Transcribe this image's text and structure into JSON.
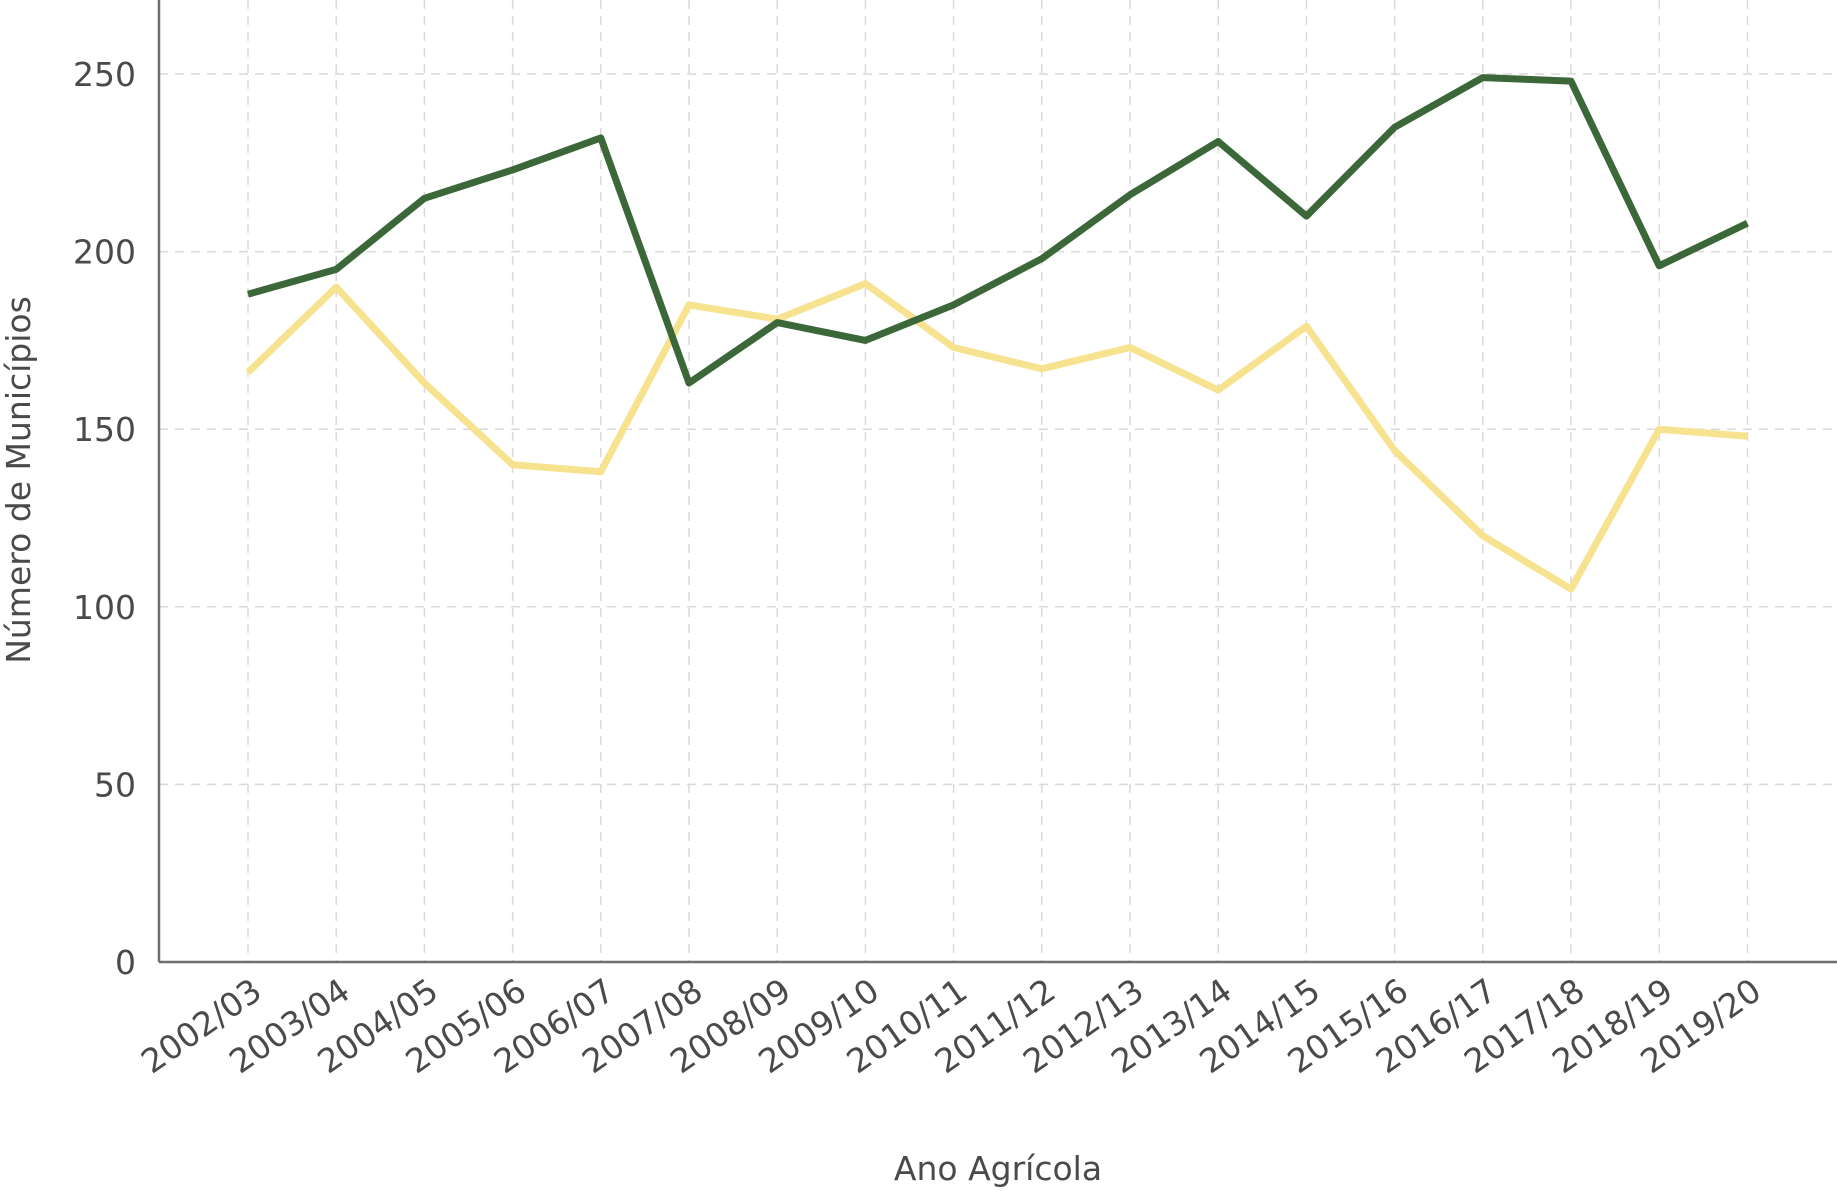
{
  "chart_data": {
    "type": "line",
    "title": "",
    "xlabel": "Ano Agrícola",
    "ylabel": "Número de Municípios",
    "ylim": [
      0,
      270
    ],
    "yticks": [
      0,
      50,
      100,
      150,
      200,
      250
    ],
    "grid": true,
    "legend": "none",
    "categories": [
      "2002/03",
      "2003/04",
      "2004/05",
      "2005/06",
      "2006/07",
      "2007/08",
      "2008/09",
      "2009/10",
      "2010/11",
      "2011/12",
      "2012/13",
      "2013/14",
      "2014/15",
      "2015/16",
      "2016/17",
      "2017/18",
      "2018/19",
      "2019/20"
    ],
    "series": [
      {
        "color": "#3c6739",
        "values": [
          188,
          195,
          215,
          223,
          232,
          163,
          180,
          175,
          185,
          198,
          216,
          231,
          210,
          235,
          249,
          248,
          196,
          208
        ]
      },
      {
        "color": "#f7e28f",
        "values": [
          166,
          190,
          163,
          140,
          138,
          185,
          181,
          191,
          173,
          167,
          173,
          161,
          179,
          144,
          120,
          105,
          150,
          148
        ]
      }
    ]
  }
}
